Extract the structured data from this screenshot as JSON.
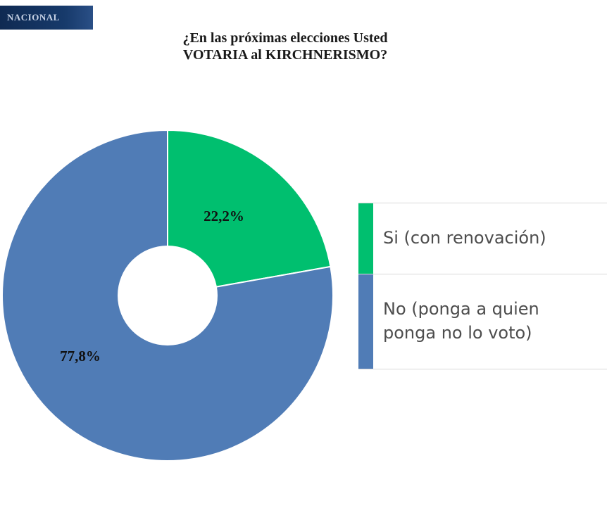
{
  "header": {
    "section_badge": "NACIONAL"
  },
  "chart_data": {
    "type": "pie",
    "donut": true,
    "title_lines": [
      "¿En las próximas elecciones Usted",
      "VOTARIA al KIRCHNERISMO?"
    ],
    "slices": [
      {
        "label": "Si (con renovación)",
        "value": 22.2,
        "value_label": "22,2%",
        "color": "#00bf6f"
      },
      {
        "label": "No (ponga a quien ponga no lo voto)",
        "value": 77.8,
        "value_label": "77,8%",
        "color": "#507cb6"
      }
    ],
    "legend": {
      "placement": "right",
      "lines": [
        [
          "Si (con renovación)"
        ],
        [
          "No (ponga a quien",
          "ponga no lo voto)"
        ]
      ]
    }
  }
}
